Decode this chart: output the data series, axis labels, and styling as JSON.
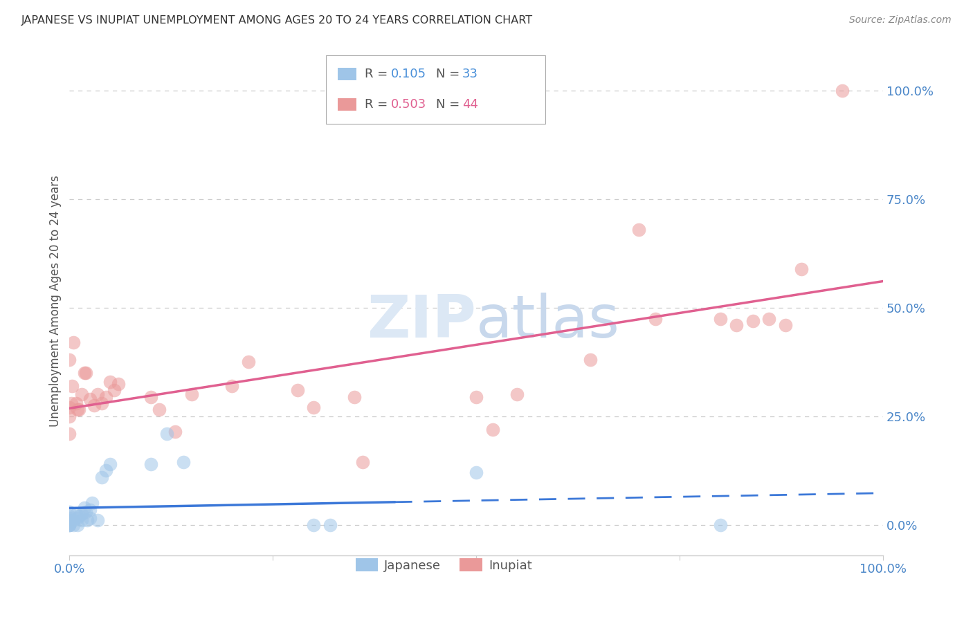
{
  "title": "JAPANESE VS INUPIAT UNEMPLOYMENT AMONG AGES 20 TO 24 YEARS CORRELATION CHART",
  "source": "Source: ZipAtlas.com",
  "ylabel": "Unemployment Among Ages 20 to 24 years",
  "xlim": [
    0.0,
    1.0
  ],
  "ylim": [
    -0.07,
    1.1
  ],
  "y_ticks_right": [
    0.0,
    0.25,
    0.5,
    0.75,
    1.0
  ],
  "y_tick_labels_right": [
    "0.0%",
    "25.0%",
    "50.0%",
    "75.0%",
    "100.0%"
  ],
  "legend_japanese_R": "0.105",
  "legend_japanese_N": "33",
  "legend_inupiat_R": "0.503",
  "legend_inupiat_N": "44",
  "japanese_color": "#9fc5e8",
  "inupiat_color": "#ea9999",
  "japanese_line_color": "#3c78d8",
  "inupiat_line_color": "#e06090",
  "r_color_japanese": "#6fa8dc",
  "n_color_japanese": "#3c78d8",
  "r_color_inupiat": "#e06090",
  "n_color_inupiat": "#cc0000",
  "watermark_color": "#dce8f5",
  "background_color": "#ffffff",
  "grid_color": "#cccccc",
  "japanese_x": [
    0.0,
    0.0,
    0.0,
    0.0,
    0.0,
    0.0,
    0.0,
    0.0,
    0.005,
    0.005,
    0.008,
    0.01,
    0.01,
    0.012,
    0.015,
    0.015,
    0.018,
    0.02,
    0.022,
    0.025,
    0.025,
    0.028,
    0.035,
    0.04,
    0.045,
    0.05,
    0.1,
    0.12,
    0.14,
    0.3,
    0.32,
    0.5,
    0.8
  ],
  "japanese_y": [
    0.0,
    0.0,
    0.0,
    0.005,
    0.01,
    0.015,
    0.02,
    0.03,
    0.0,
    0.01,
    0.025,
    0.0,
    0.015,
    0.02,
    0.01,
    0.025,
    0.04,
    0.03,
    0.01,
    0.015,
    0.035,
    0.05,
    0.01,
    0.11,
    0.125,
    0.14,
    0.14,
    0.21,
    0.145,
    0.0,
    0.0,
    0.12,
    0.0
  ],
  "inupiat_x": [
    0.0,
    0.0,
    0.0,
    0.0,
    0.002,
    0.003,
    0.005,
    0.008,
    0.01,
    0.012,
    0.015,
    0.018,
    0.02,
    0.025,
    0.03,
    0.035,
    0.04,
    0.045,
    0.05,
    0.055,
    0.06,
    0.1,
    0.11,
    0.13,
    0.15,
    0.2,
    0.22,
    0.28,
    0.3,
    0.35,
    0.36,
    0.5,
    0.52,
    0.55,
    0.64,
    0.7,
    0.72,
    0.8,
    0.82,
    0.84,
    0.86,
    0.88,
    0.9,
    0.95
  ],
  "inupiat_y": [
    0.21,
    0.25,
    0.27,
    0.38,
    0.28,
    0.32,
    0.42,
    0.28,
    0.265,
    0.265,
    0.3,
    0.35,
    0.35,
    0.29,
    0.275,
    0.3,
    0.28,
    0.295,
    0.33,
    0.31,
    0.325,
    0.295,
    0.265,
    0.215,
    0.3,
    0.32,
    0.375,
    0.31,
    0.27,
    0.295,
    0.145,
    0.295,
    0.22,
    0.3,
    0.38,
    0.68,
    0.475,
    0.475,
    0.46,
    0.47,
    0.475,
    0.46,
    0.59,
    1.0
  ]
}
